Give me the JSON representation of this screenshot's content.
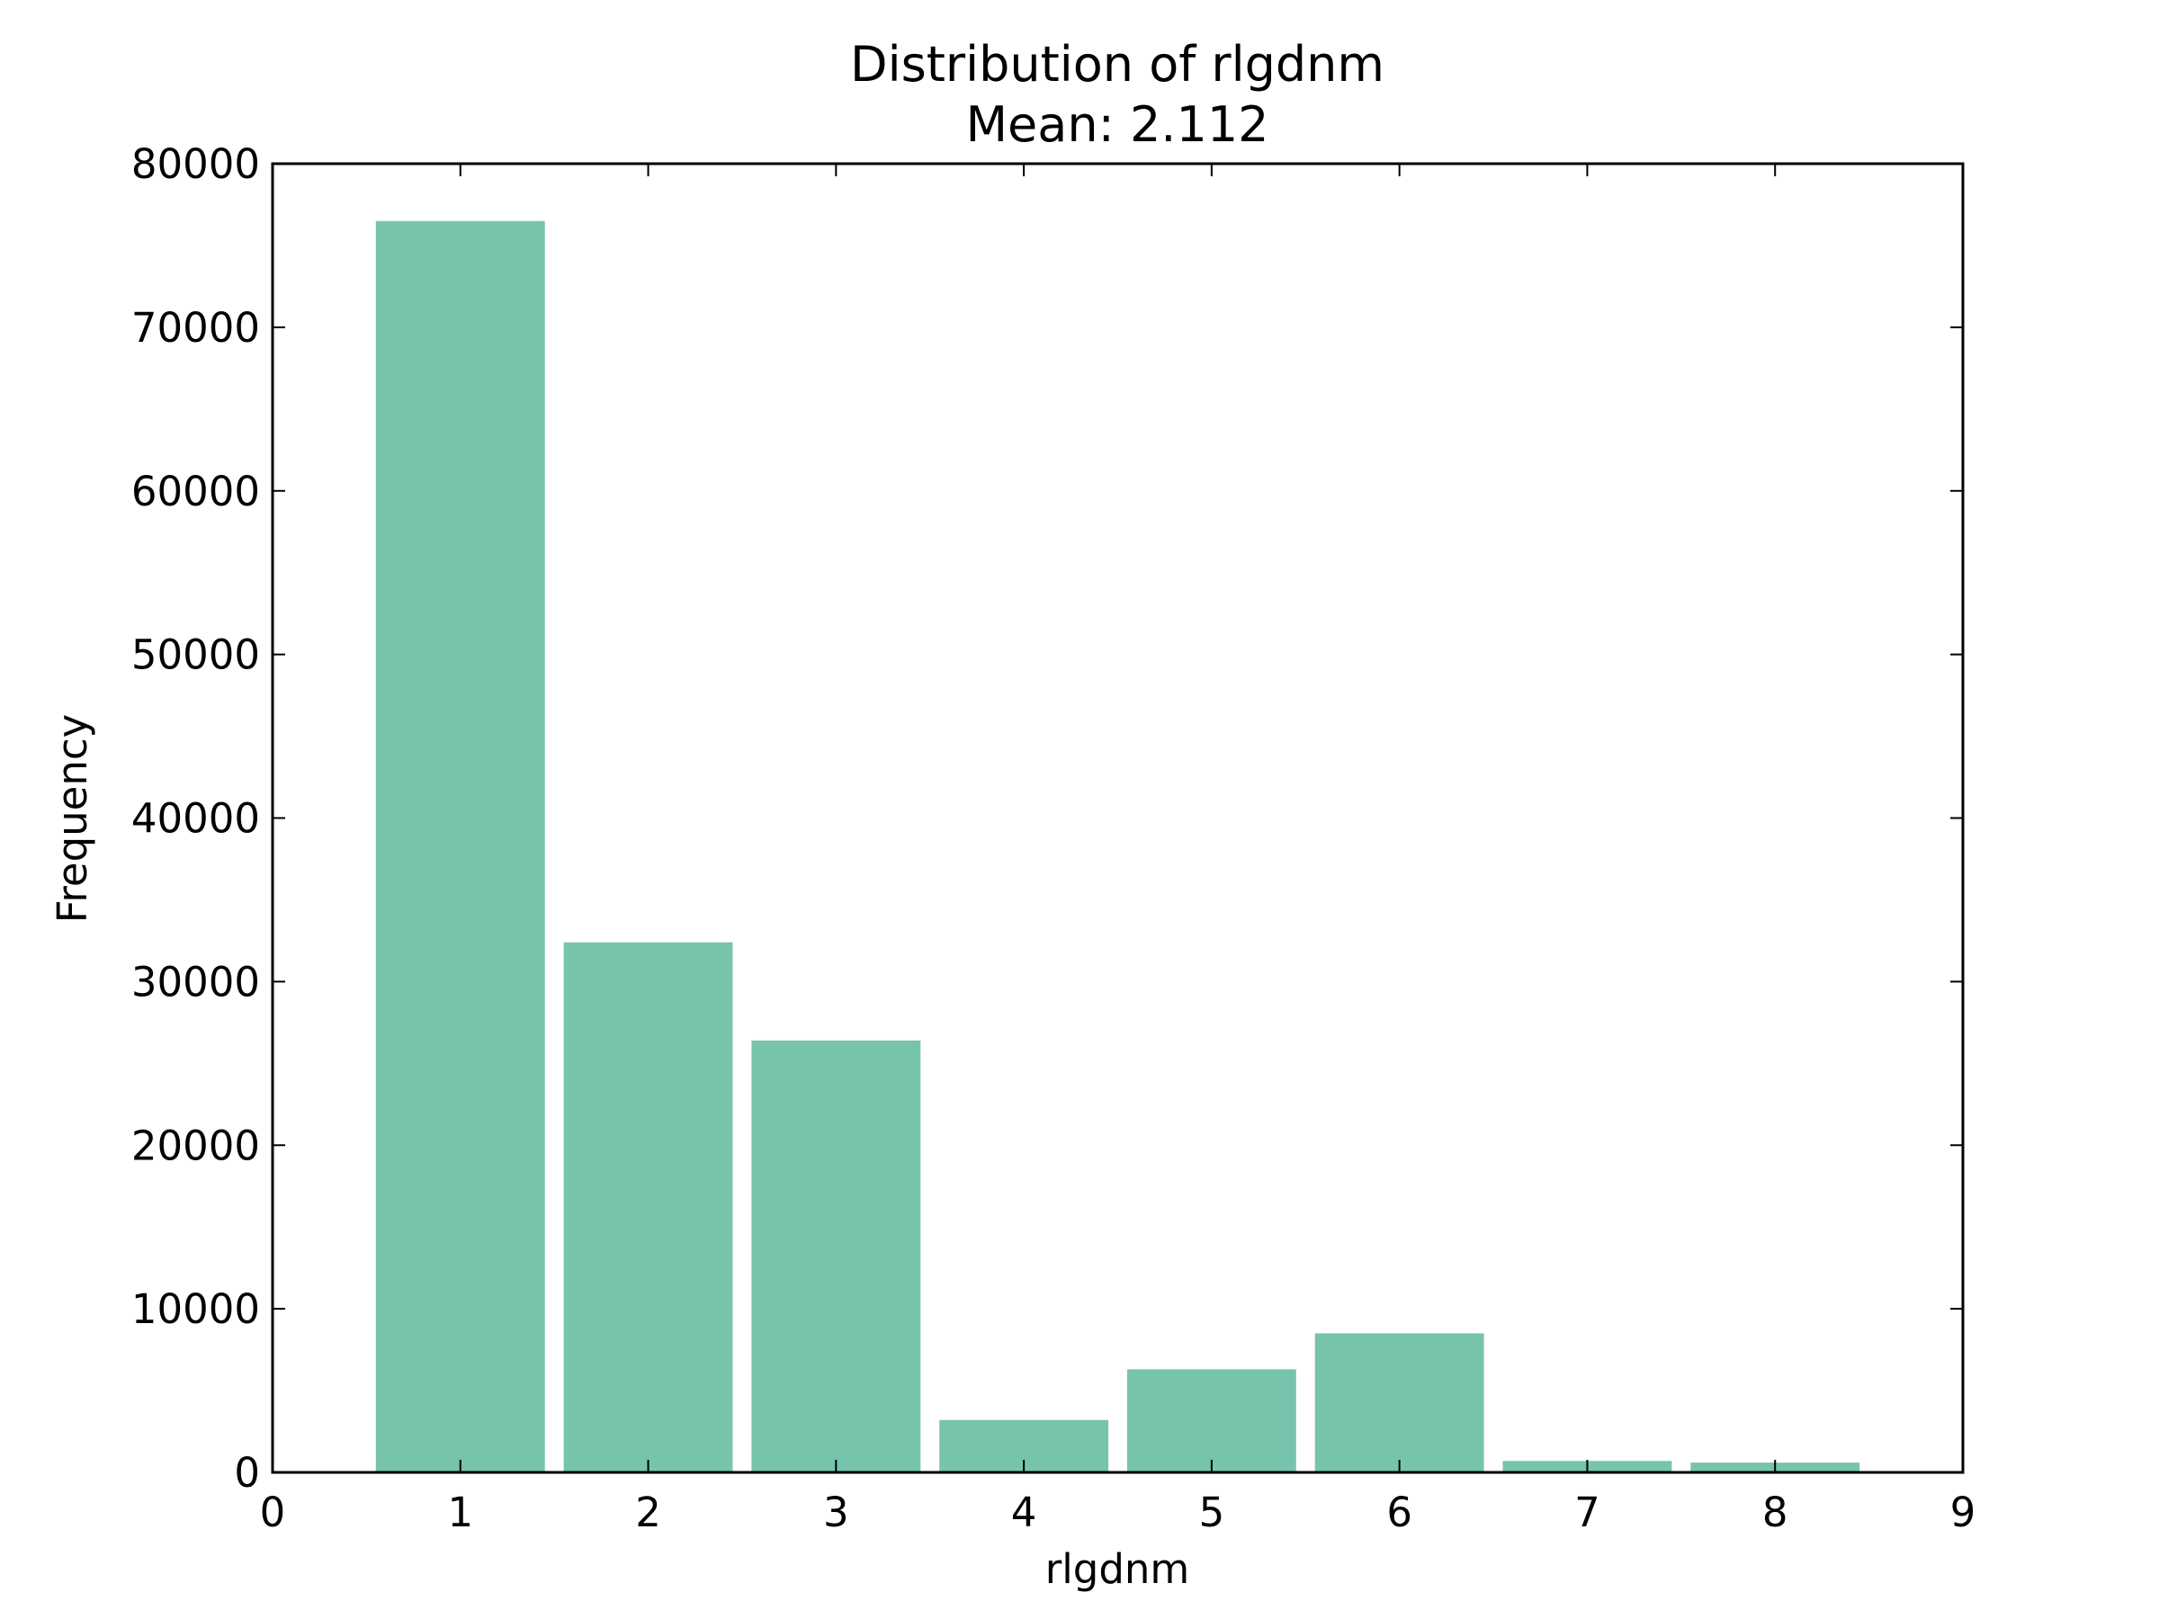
{
  "chart_data": {
    "type": "bar",
    "title": "Distribution of rlgdnm",
    "subtitle": "Mean: 2.112",
    "xlabel": "rlgdnm",
    "ylabel": "Frequency",
    "x": [
      1,
      2,
      3,
      4,
      5,
      6,
      7,
      8
    ],
    "values": [
      76500,
      32400,
      26400,
      3200,
      6300,
      8500,
      700,
      600
    ],
    "xlim": [
      0,
      9
    ],
    "ylim": [
      0,
      80000
    ],
    "xticks": [
      "0",
      "1",
      "2",
      "3",
      "4",
      "5",
      "6",
      "7",
      "8",
      "9"
    ],
    "yticks": [
      "0",
      "10000",
      "20000",
      "30000",
      "40000",
      "50000",
      "60000",
      "70000",
      "80000"
    ],
    "bar_color": "#77c4ad",
    "grid": false
  }
}
